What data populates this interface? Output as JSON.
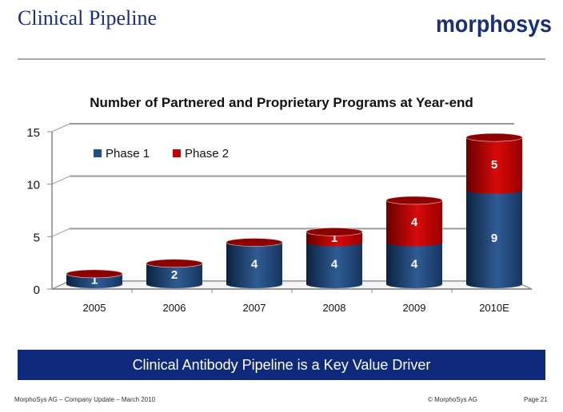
{
  "header": {
    "title": "Clinical Pipeline",
    "logo_text": "morphosys"
  },
  "banner": {
    "text": "Clinical Antibody Pipeline is a Key Value Driver"
  },
  "footer": {
    "left": "MorphoSys AG  –  Company Update  –  March 2010",
    "copyright": "© MorphoSys AG",
    "page": "Page 21"
  },
  "colors": {
    "brand_blue": "#0f2a7d",
    "phase1": "#244f85",
    "phase2": "#c80000"
  },
  "chart_data": {
    "type": "bar",
    "stacked": true,
    "style": "3d-cylinder",
    "title": "Number of Partnered and Proprietary Programs at Year-end",
    "xlabel": "",
    "ylabel": "",
    "categories": [
      "2005",
      "2006",
      "2007",
      "2008",
      "2009",
      "2010E"
    ],
    "series": [
      {
        "name": "Phase 1",
        "color": "#244f85",
        "values": [
          1,
          2,
          4,
          4,
          4,
          9
        ]
      },
      {
        "name": "Phase 2",
        "color": "#c80000",
        "values": [
          0,
          0,
          0,
          1,
          4,
          5
        ]
      }
    ],
    "ylim": [
      0,
      15
    ],
    "yticks": [
      "0",
      "5",
      "10",
      "15"
    ],
    "grid": true,
    "legend": "top-left"
  }
}
